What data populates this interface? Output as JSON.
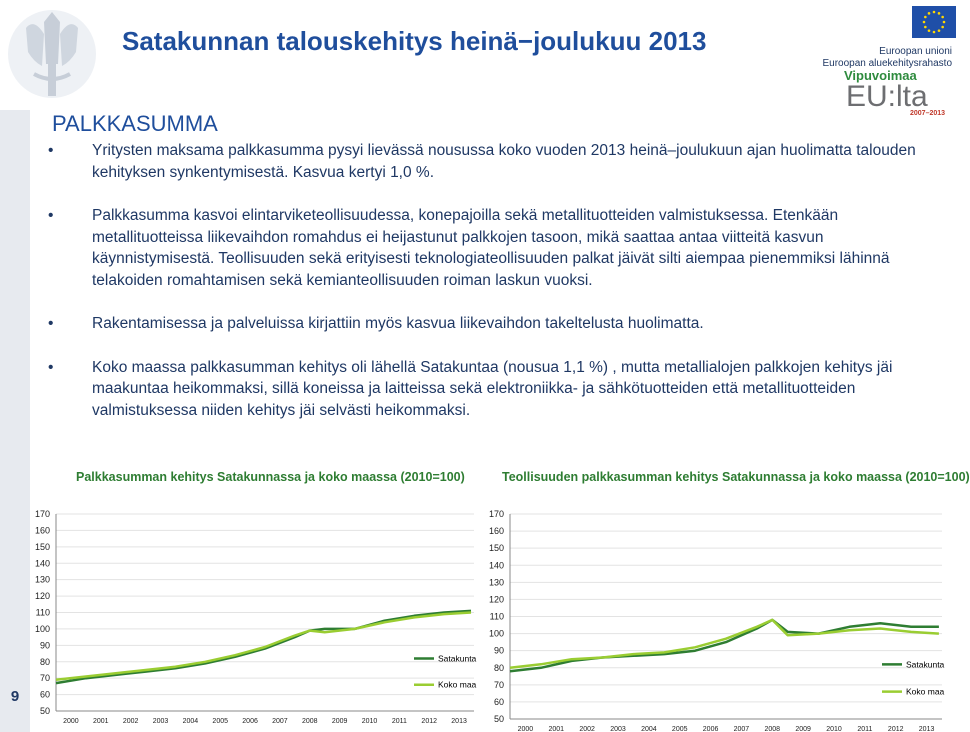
{
  "title": "Satakunnan talouskehitys heinä−joulukuu 2013",
  "heading": "PALKKASUMMA",
  "bullet_symbol": "•",
  "bullets": [
    "Yritysten maksama palkkasumma pysyi lievässä nousussa koko vuoden 2013 heinä–joulukuun ajan huolimatta talouden kehityksen synkentymisestä. Kasvua kertyi 1,0 %.",
    "Palkkasumma kasvoi elintarviketeollisuudessa, konepajoilla sekä metallituotteiden valmistuksessa. Etenkään metallituotteissa liikevaihdon romahdus ei heijastunut palkkojen tasoon, mikä saattaa antaa viitteitä kasvun käynnistymisestä. Teollisuuden sekä erityisesti teknologiateollisuuden palkat jäivät silti aiempaa pienemmiksi lähinnä telakoiden romahtamisen sekä kemianteollisuuden roiman laskun vuoksi.",
    "Rakentamisessa ja palveluissa kirjattiin myös kasvua liikevaihdon takeltelusta huolimatta.",
    "Koko maassa palkkasumman kehitys oli lähellä Satakuntaa (nousua 1,1 %) , mutta metallialojen palkkojen kehitys jäi maakuntaa heikommaksi, sillä koneissa ja laitteissa sekä elektroniikka- ja sähkötuotteiden että metallituotteiden valmistuksessa niiden kehitys jäi selvästi heikommaksi."
  ],
  "eu_logo": {
    "line1": "Euroopan unioni",
    "line2": "Euroopan aluekehitysrahasto",
    "vipuvoimaa": "Vipuvoimaa",
    "eulta": "EU:lta",
    "years": "2007–2013"
  },
  "page_number": "9",
  "colors": {
    "title": "#1f4e9c",
    "text": "#1f3864",
    "caption": "#2e7d32",
    "satakunta": "#2e7d32",
    "koko_maa": "#9acd32"
  },
  "chart_data": [
    {
      "type": "line",
      "title": "Palkkasumman kehitys Satakunnassa ja koko maassa (2010=100)",
      "xlabel": "",
      "ylabel": "",
      "x_ticks": [
        "2000",
        "2001",
        "2002",
        "2003",
        "2004",
        "2005",
        "2006",
        "2007",
        "2008",
        "2009",
        "2010",
        "2011",
        "2012",
        "2013"
      ],
      "y_ticks": [
        50,
        60,
        70,
        80,
        90,
        100,
        110,
        120,
        130,
        140,
        150,
        160,
        170
      ],
      "ylim": [
        50,
        170
      ],
      "xlim": [
        2000,
        2014
      ],
      "grid": true,
      "legend": "right",
      "series": [
        {
          "name": "Satakunta",
          "color": "#2e7d32",
          "x": [
            2000,
            2001,
            2002,
            2003,
            2004,
            2005,
            2006,
            2007,
            2008,
            2008.5,
            2009,
            2010,
            2011,
            2012,
            2013,
            2013.9
          ],
          "y": [
            67,
            70,
            72,
            74,
            76,
            79,
            83,
            88,
            95,
            99,
            100,
            100,
            105,
            108,
            110,
            111
          ]
        },
        {
          "name": "Koko maa",
          "color": "#9acd32",
          "x": [
            2000,
            2001,
            2002,
            2003,
            2004,
            2005,
            2006,
            2007,
            2008,
            2008.5,
            2009,
            2010,
            2011,
            2012,
            2013,
            2013.9
          ],
          "y": [
            69,
            71,
            73,
            75,
            77,
            80,
            84,
            89,
            96,
            99,
            98,
            100,
            104,
            107,
            109,
            110
          ]
        }
      ]
    },
    {
      "type": "line",
      "title": "Teollisuuden palkkasumman kehitys Satakunnassa ja koko maassa (2010=100)",
      "xlabel": "",
      "ylabel": "",
      "x_ticks": [
        "2000",
        "2001",
        "2002",
        "2003",
        "2004",
        "2005",
        "2006",
        "2007",
        "2008",
        "2009",
        "2010",
        "2011",
        "2012",
        "2013"
      ],
      "y_ticks": [
        50,
        60,
        70,
        80,
        90,
        100,
        110,
        120,
        130,
        140,
        150,
        160,
        170
      ],
      "ylim": [
        50,
        170
      ],
      "xlim": [
        2000,
        2014
      ],
      "grid": true,
      "legend": "right",
      "series": [
        {
          "name": "Satakunta",
          "color": "#2e7d32",
          "x": [
            2000,
            2001,
            2002,
            2003,
            2004,
            2005,
            2006,
            2007,
            2008,
            2008.5,
            2009,
            2010,
            2011,
            2012,
            2012.5,
            2013,
            2013.9
          ],
          "y": [
            78,
            80,
            84,
            86,
            87,
            88,
            90,
            95,
            103,
            108,
            101,
            100,
            104,
            106,
            105,
            104,
            104
          ]
        },
        {
          "name": "Koko maa",
          "color": "#9acd32",
          "x": [
            2000,
            2001,
            2002,
            2003,
            2004,
            2005,
            2006,
            2007,
            2008,
            2008.5,
            2009,
            2010,
            2011,
            2012,
            2013,
            2013.9
          ],
          "y": [
            80,
            82,
            85,
            86,
            88,
            89,
            92,
            97,
            104,
            108,
            99,
            100,
            102,
            103,
            101,
            100
          ]
        }
      ]
    }
  ]
}
